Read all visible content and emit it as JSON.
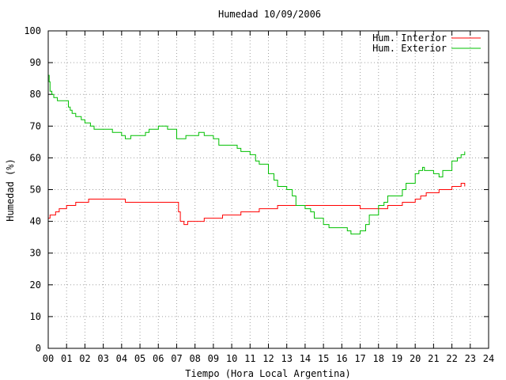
{
  "chart_data": {
    "type": "line",
    "title": "Humedad 10/09/2006",
    "xlabel": "Tiempo (Hora Local Argentina)",
    "ylabel": "Humedad (%)",
    "xlim": [
      0,
      24
    ],
    "ylim": [
      0,
      100
    ],
    "x_tick_labels": [
      "00",
      "01",
      "02",
      "03",
      "04",
      "05",
      "06",
      "07",
      "08",
      "09",
      "10",
      "11",
      "12",
      "13",
      "14",
      "15",
      "16",
      "17",
      "18",
      "19",
      "20",
      "21",
      "22",
      "23",
      "24"
    ],
    "y_tick_labels": [
      "0",
      "10",
      "20",
      "30",
      "40",
      "50",
      "60",
      "70",
      "80",
      "90",
      "100"
    ],
    "grid": true,
    "legend_position": "top-right",
    "series": [
      {
        "name": "Hum. Interior",
        "color": "#ff0000",
        "x": [
          0.0,
          0.1,
          0.3,
          0.4,
          0.5,
          0.6,
          0.8,
          1.0,
          1.2,
          1.5,
          1.8,
          2.0,
          2.2,
          2.5,
          3.0,
          3.5,
          4.0,
          4.2,
          4.5,
          5.0,
          5.5,
          6.0,
          6.5,
          7.0,
          7.1,
          7.2,
          7.4,
          7.6,
          8.0,
          8.5,
          9.0,
          9.5,
          10.0,
          10.5,
          11.0,
          11.5,
          12.0,
          12.5,
          13.0,
          13.5,
          14.0,
          14.5,
          15.0,
          15.5,
          16.0,
          16.5,
          17.0,
          17.5,
          18.0,
          18.3,
          18.5,
          19.0,
          19.3,
          19.6,
          20.0,
          20.3,
          20.6,
          21.0,
          21.3,
          21.6,
          22.0,
          22.3,
          22.5,
          22.7
        ],
        "y": [
          41,
          42,
          42,
          43,
          43,
          44,
          44,
          45,
          45,
          46,
          46,
          46,
          47,
          47,
          47,
          47,
          47,
          46,
          46,
          46,
          46,
          46,
          46,
          46,
          43,
          40,
          39,
          40,
          40,
          41,
          41,
          42,
          42,
          43,
          43,
          44,
          44,
          45,
          45,
          45,
          45,
          45,
          45,
          45,
          45,
          45,
          44,
          44,
          44,
          44,
          45,
          45,
          46,
          46,
          47,
          48,
          49,
          49,
          50,
          50,
          51,
          51,
          52,
          51
        ]
      },
      {
        "name": "Hum. Exterior",
        "color": "#00c000",
        "x": [
          0.0,
          0.05,
          0.1,
          0.2,
          0.3,
          0.5,
          0.7,
          1.0,
          1.1,
          1.2,
          1.3,
          1.5,
          1.8,
          2.0,
          2.3,
          2.5,
          3.0,
          3.5,
          4.0,
          4.2,
          4.5,
          5.0,
          5.3,
          5.5,
          6.0,
          6.5,
          7.0,
          7.3,
          7.5,
          8.0,
          8.2,
          8.5,
          9.0,
          9.3,
          9.5,
          10.0,
          10.3,
          10.5,
          11.0,
          11.3,
          11.5,
          12.0,
          12.3,
          12.5,
          13.0,
          13.3,
          13.5,
          14.0,
          14.3,
          14.5,
          15.0,
          15.3,
          15.5,
          16.0,
          16.3,
          16.5,
          17.0,
          17.3,
          17.5,
          18.0,
          18.3,
          18.5,
          19.0,
          19.3,
          19.5,
          20.0,
          20.2,
          20.4,
          20.5,
          21.0,
          21.3,
          21.5,
          22.0,
          22.3,
          22.5,
          22.7
        ],
        "y": [
          86,
          84,
          81,
          80,
          79,
          78,
          78,
          78,
          76,
          75,
          74,
          73,
          72,
          71,
          70,
          69,
          69,
          68,
          67,
          66,
          67,
          67,
          68,
          69,
          70,
          69,
          66,
          66,
          67,
          67,
          68,
          67,
          66,
          64,
          64,
          64,
          63,
          62,
          61,
          59,
          58,
          55,
          53,
          51,
          50,
          48,
          45,
          44,
          43,
          41,
          39,
          38,
          38,
          38,
          37,
          36,
          37,
          39,
          42,
          45,
          46,
          48,
          48,
          50,
          52,
          55,
          56,
          57,
          56,
          55,
          54,
          56,
          59,
          60,
          61,
          62
        ]
      }
    ]
  }
}
